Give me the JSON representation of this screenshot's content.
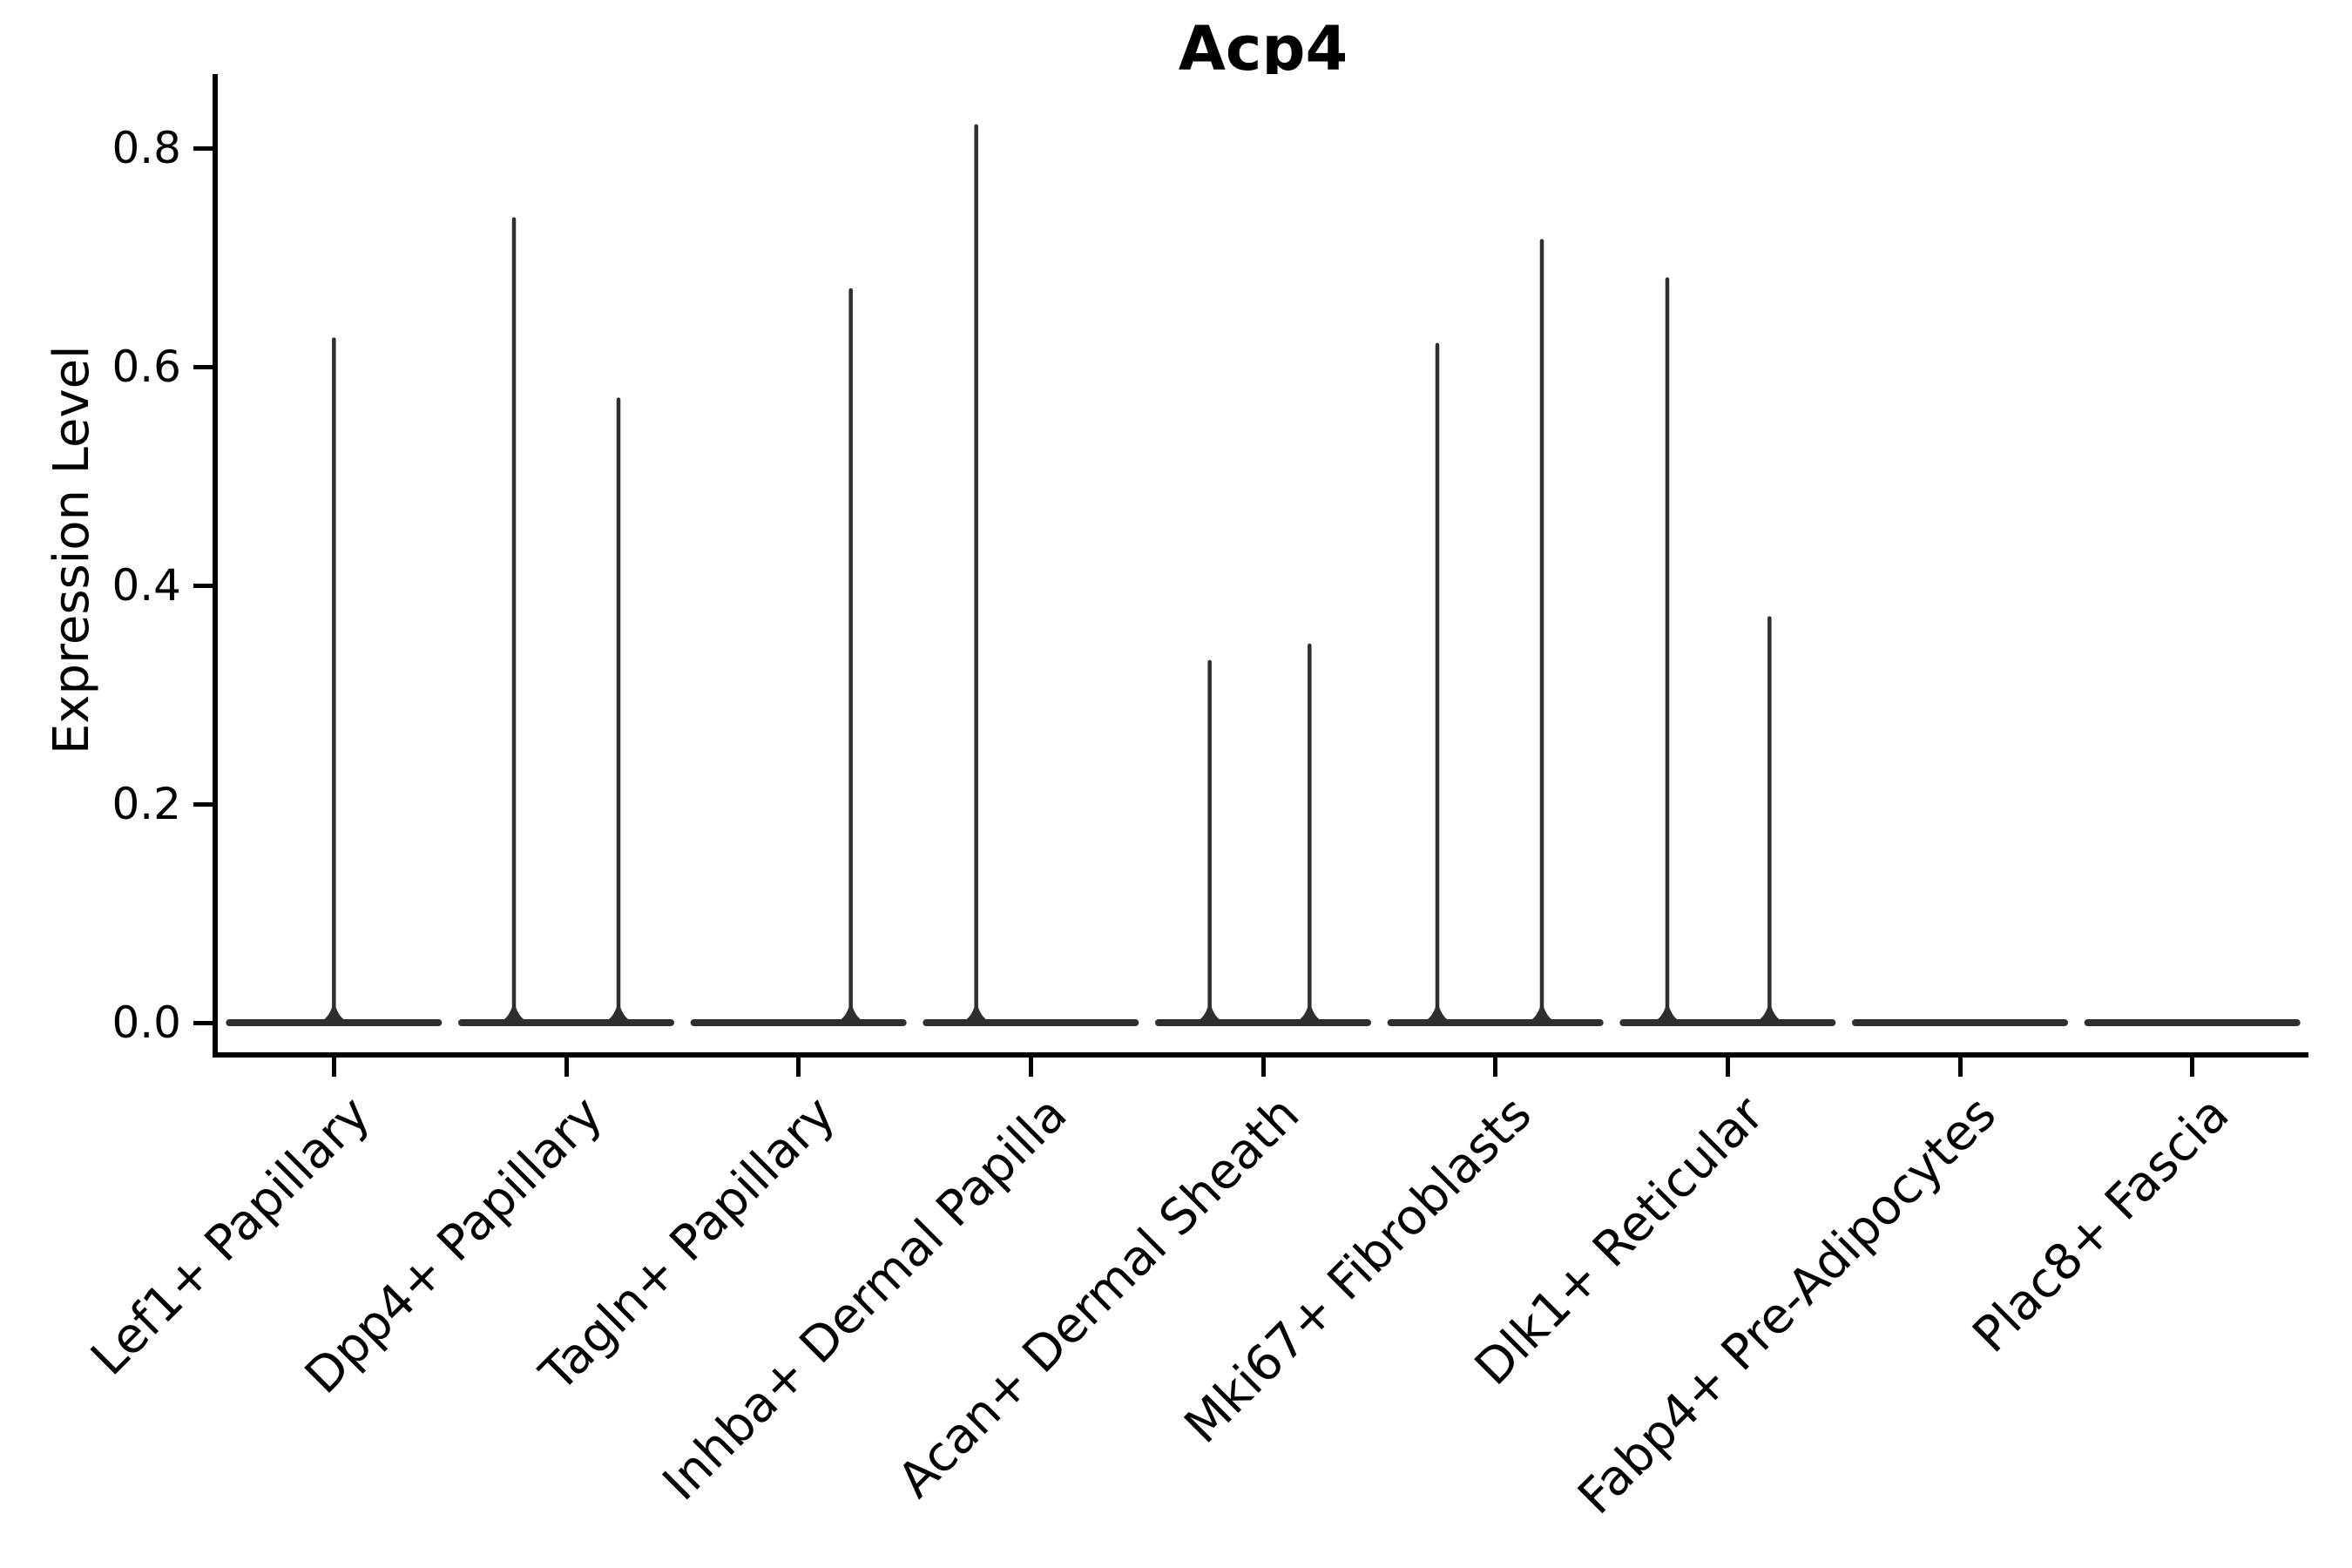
{
  "chart_data": {
    "type": "violin",
    "title": "Acp4",
    "xlabel": "",
    "ylabel": "Expression Level",
    "legend": "none",
    "grid": false,
    "background_color": "#ffffff",
    "axis_color": "#000000",
    "text_color": "#000000",
    "violin_color": "#2e2e2e",
    "ylim": [
      -0.03,
      0.87
    ],
    "yticks": [
      "0.0",
      "0.2",
      "0.4",
      "0.6",
      "0.8"
    ],
    "ytick_values": [
      0.0,
      0.2,
      0.4,
      0.6,
      0.8
    ],
    "categories": [
      "Lef1+ Papillary",
      "Dpp4+ Papillary",
      "Tagln+ Papillary",
      "Inhba+ Dermal Papilla",
      "Acan+ Dermal Sheath",
      "Mki67+ Fibroblasts",
      "Dlk1+ Reticular",
      "Fabp4+ Pre-Adipocytes",
      "Plac8+ Fascia"
    ],
    "baseline_value": 0.0,
    "violin_base_width_frac": 0.9,
    "violins": [
      {
        "category": "Lef1+ Papillary",
        "spikes": [
          {
            "offset_frac": 0.0,
            "max_value": 0.625
          }
        ]
      },
      {
        "category": "Dpp4+ Papillary",
        "spikes": [
          {
            "offset_frac": -0.225,
            "max_value": 0.735
          },
          {
            "offset_frac": 0.225,
            "max_value": 0.57
          }
        ]
      },
      {
        "category": "Tagln+ Papillary",
        "spikes": [
          {
            "offset_frac": 0.225,
            "max_value": 0.67
          }
        ]
      },
      {
        "category": "Inhba+ Dermal Papilla",
        "spikes": [
          {
            "offset_frac": -0.235,
            "max_value": 0.82
          }
        ]
      },
      {
        "category": "Acan+ Dermal Sheath",
        "spikes": [
          {
            "offset_frac": -0.23,
            "max_value": 0.33
          },
          {
            "offset_frac": 0.2,
            "max_value": 0.345
          }
        ]
      },
      {
        "category": "Mki67+ Fibroblasts",
        "spikes": [
          {
            "offset_frac": -0.25,
            "max_value": 0.62
          },
          {
            "offset_frac": 0.2,
            "max_value": 0.715
          }
        ]
      },
      {
        "category": "Dlk1+ Reticular",
        "spikes": [
          {
            "offset_frac": -0.26,
            "max_value": 0.68
          },
          {
            "offset_frac": 0.18,
            "max_value": 0.37
          }
        ]
      },
      {
        "category": "Fabp4+ Pre-Adipocytes",
        "spikes": []
      },
      {
        "category": "Plac8+ Fascia",
        "spikes": []
      }
    ]
  }
}
